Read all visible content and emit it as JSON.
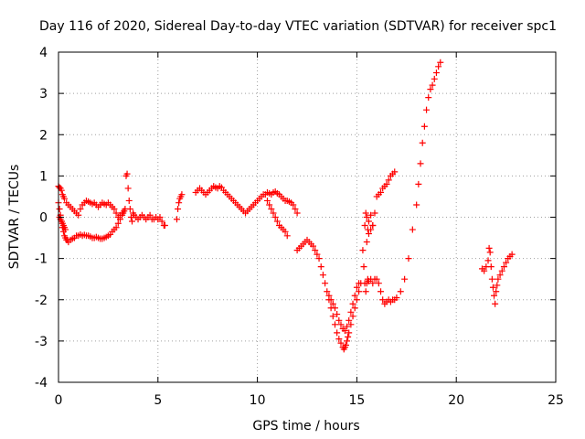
{
  "chart_data": {
    "type": "scatter",
    "title": "Day 116 of 2020, Sidereal Day-to-day VTEC variation (SDTVAR) for receiver spc1",
    "xlabel": "GPS time / hours",
    "ylabel": "SDTVAR / TECUs",
    "xlim": [
      0,
      25
    ],
    "ylim": [
      -4,
      4
    ],
    "xticks": [
      0,
      5,
      10,
      15,
      20,
      25
    ],
    "yticks": [
      -4,
      -3,
      -2,
      -1,
      0,
      1,
      2,
      3,
      4
    ],
    "xtick_labels": [
      "0",
      "5",
      "10",
      "15",
      "20",
      "25"
    ],
    "ytick_labels": [
      "-4",
      "-3",
      "-2",
      "-1",
      "0",
      "1",
      "2",
      "3",
      "4"
    ],
    "grid": true,
    "marker": "+",
    "color": "#ff0000",
    "series": [
      {
        "x": [
          0.0,
          0.05,
          0.1,
          0.15,
          0.2,
          0.25,
          0.3,
          0.35,
          0.4,
          0.45,
          0.5,
          0.6,
          0.7,
          0.8,
          0.9,
          1.0,
          1.1,
          1.2,
          1.3,
          1.4,
          1.5,
          1.6,
          1.7,
          1.8,
          1.9,
          2.0,
          2.1,
          2.2,
          2.3,
          2.4,
          2.5,
          2.6,
          2.7,
          2.8,
          2.9,
          3.0,
          3.1,
          3.2,
          3.25,
          3.3,
          3.35
        ],
        "y": [
          0.35,
          0.2,
          0.05,
          -0.1,
          -0.25,
          -0.35,
          -0.45,
          -0.5,
          -0.55,
          -0.55,
          -0.6,
          -0.55,
          -0.52,
          -0.5,
          -0.45,
          -0.45,
          -0.42,
          -0.45,
          -0.43,
          -0.45,
          -0.45,
          -0.47,
          -0.5,
          -0.5,
          -0.48,
          -0.5,
          -0.52,
          -0.52,
          -0.5,
          -0.48,
          -0.45,
          -0.42,
          -0.35,
          -0.3,
          -0.25,
          -0.15,
          -0.05,
          0.05,
          0.1,
          0.15,
          0.2
        ]
      },
      {
        "x": [
          0.0,
          0.05,
          0.1,
          0.15,
          0.2,
          0.25,
          0.3,
          0.4,
          0.5,
          0.6,
          0.7,
          0.8,
          0.9,
          1.0,
          1.1,
          1.2,
          1.3,
          1.4,
          1.5,
          1.6,
          1.7,
          1.8,
          1.9,
          2.0,
          2.1,
          2.2,
          2.3,
          2.4,
          2.5,
          2.6,
          2.7,
          2.8,
          2.9,
          3.0,
          3.1,
          3.2
        ],
        "y": [
          0.75,
          0.72,
          0.7,
          0.65,
          0.55,
          0.5,
          0.45,
          0.35,
          0.3,
          0.25,
          0.2,
          0.15,
          0.1,
          0.05,
          0.2,
          0.3,
          0.35,
          0.4,
          0.38,
          0.35,
          0.32,
          0.35,
          0.3,
          0.25,
          0.3,
          0.35,
          0.32,
          0.3,
          0.35,
          0.3,
          0.25,
          0.2,
          0.1,
          0.0,
          0.05,
          0.1
        ]
      },
      {
        "x": [
          0.05,
          0.1,
          0.15,
          0.2,
          0.25,
          0.3,
          0.35
        ],
        "y": [
          0.0,
          -0.05,
          -0.1,
          -0.15,
          -0.2,
          -0.25,
          -0.3
        ]
      },
      {
        "x": [
          3.4,
          3.45,
          3.5,
          3.55,
          3.6,
          3.65,
          3.7,
          3.75,
          3.8,
          3.9,
          4.0,
          4.1,
          4.2,
          4.3,
          4.4,
          4.5,
          4.6,
          4.7,
          4.8,
          4.9,
          5.0,
          5.1,
          5.2,
          5.3,
          5.35
        ],
        "y": [
          1.0,
          1.05,
          0.7,
          0.4,
          0.2,
          0.0,
          -0.1,
          0.1,
          0.05,
          0.0,
          -0.05,
          0.0,
          0.05,
          0.0,
          -0.05,
          0.0,
          0.05,
          -0.05,
          -0.05,
          0.0,
          -0.05,
          0.0,
          -0.1,
          -0.2,
          -0.2
        ]
      },
      {
        "x": [
          5.95,
          6.0,
          6.05,
          6.1,
          6.15,
          6.2
        ],
        "y": [
          -0.05,
          0.2,
          0.35,
          0.45,
          0.5,
          0.55
        ]
      },
      {
        "x": [
          6.9,
          7.0,
          7.1,
          7.2,
          7.3,
          7.4,
          7.5,
          7.6,
          7.7,
          7.8,
          7.9,
          8.0,
          8.1,
          8.2,
          8.3,
          8.4,
          8.5,
          8.6,
          8.7,
          8.8,
          8.9,
          9.0,
          9.1,
          9.2,
          9.3,
          9.4,
          9.5,
          9.6,
          9.7,
          9.8,
          9.9,
          10.0,
          10.1,
          10.2,
          10.3,
          10.4,
          10.5,
          10.6,
          10.7,
          10.8,
          10.9,
          11.0,
          11.1,
          11.2,
          11.3,
          11.4,
          11.5,
          11.6,
          11.7,
          11.8,
          11.9,
          12.0
        ],
        "y": [
          0.6,
          0.65,
          0.7,
          0.65,
          0.6,
          0.55,
          0.6,
          0.65,
          0.7,
          0.75,
          0.72,
          0.7,
          0.75,
          0.72,
          0.65,
          0.6,
          0.55,
          0.5,
          0.45,
          0.4,
          0.35,
          0.3,
          0.25,
          0.2,
          0.15,
          0.1,
          0.15,
          0.2,
          0.25,
          0.3,
          0.35,
          0.4,
          0.45,
          0.5,
          0.55,
          0.55,
          0.6,
          0.58,
          0.55,
          0.6,
          0.62,
          0.58,
          0.55,
          0.5,
          0.45,
          0.4,
          0.4,
          0.38,
          0.35,
          0.3,
          0.2,
          0.1
        ]
      },
      {
        "x": [
          10.5,
          10.6,
          10.7,
          10.8,
          10.9,
          11.0,
          11.1,
          11.2,
          11.3,
          11.4,
          11.5
        ],
        "y": [
          0.4,
          0.3,
          0.2,
          0.1,
          0.0,
          -0.1,
          -0.2,
          -0.25,
          -0.3,
          -0.35,
          -0.45
        ]
      },
      {
        "x": [
          12.0,
          12.1,
          12.2,
          12.3,
          12.4,
          12.5,
          12.6,
          12.7,
          12.8,
          12.9,
          13.0,
          13.1,
          13.2,
          13.3,
          13.4,
          13.5,
          13.6,
          13.7,
          13.8,
          13.9,
          14.0,
          14.1,
          14.2,
          14.3,
          14.35,
          14.4,
          14.45,
          14.5,
          14.55,
          14.6,
          14.7,
          14.8,
          14.9,
          15.0,
          15.1,
          15.2
        ],
        "y": [
          -0.8,
          -0.75,
          -0.7,
          -0.65,
          -0.6,
          -0.55,
          -0.6,
          -0.65,
          -0.7,
          -0.8,
          -0.9,
          -1.0,
          -1.2,
          -1.4,
          -1.6,
          -1.8,
          -2.0,
          -2.2,
          -2.4,
          -2.6,
          -2.8,
          -2.95,
          -3.05,
          -3.15,
          -3.2,
          -3.15,
          -3.1,
          -3.0,
          -2.9,
          -2.8,
          -2.6,
          -2.4,
          -2.2,
          -2.0,
          -1.8,
          -1.6
        ]
      },
      {
        "x": [
          13.6,
          13.7,
          13.8,
          13.9,
          14.0,
          14.1,
          14.2,
          14.3,
          14.4,
          14.5,
          14.6,
          14.7,
          14.8,
          14.9,
          15.0,
          15.1
        ],
        "y": [
          -1.9,
          -2.0,
          -2.1,
          -2.2,
          -2.35,
          -2.5,
          -2.6,
          -2.7,
          -2.75,
          -2.65,
          -2.5,
          -2.3,
          -2.1,
          -1.9,
          -1.7,
          -1.6
        ]
      },
      {
        "x": [
          15.3,
          15.35,
          15.4,
          15.45,
          15.5,
          15.55,
          15.6,
          15.7,
          15.8,
          15.9,
          16.0,
          16.1,
          16.2,
          16.3,
          16.4,
          16.5,
          16.6,
          16.7,
          16.8,
          16.9,
          17.0,
          17.2,
          17.4,
          17.6,
          17.8,
          18.0,
          18.1,
          18.2,
          18.3,
          18.4,
          18.5,
          18.6,
          18.7,
          18.8,
          18.9,
          19.0,
          19.1,
          19.2
        ],
        "y": [
          -0.8,
          -1.2,
          -1.6,
          -1.8,
          -1.6,
          -1.5,
          -1.55,
          -1.5,
          -1.6,
          -1.5,
          -1.5,
          -1.6,
          -1.8,
          -2.0,
          -2.1,
          -2.05,
          -2.0,
          -2.05,
          -2.0,
          -2.0,
          -1.95,
          -1.8,
          -1.5,
          -1.0,
          -0.3,
          0.3,
          0.8,
          1.3,
          1.8,
          2.2,
          2.6,
          2.9,
          3.1,
          3.2,
          3.35,
          3.5,
          3.65,
          3.75
        ]
      },
      {
        "x": [
          15.4,
          15.45,
          15.5,
          15.55,
          15.6,
          15.7,
          15.8,
          15.9,
          16.0,
          16.1,
          16.2,
          16.3,
          16.4,
          16.5,
          16.6,
          16.7,
          16.8,
          16.9
        ],
        "y": [
          -0.2,
          0.1,
          0.0,
          -0.3,
          -0.1,
          0.05,
          -0.2,
          0.1,
          0.5,
          0.55,
          0.6,
          0.7,
          0.75,
          0.8,
          0.9,
          1.0,
          1.05,
          1.1
        ]
      },
      {
        "x": [
          15.5,
          15.6,
          15.7,
          15.8
        ],
        "y": [
          -0.6,
          -0.4,
          -0.3,
          -0.2
        ]
      },
      {
        "x": [
          21.3,
          21.4,
          21.5,
          21.6,
          21.65,
          21.7,
          21.75,
          21.8,
          21.85,
          21.9,
          21.95,
          22.0,
          22.05,
          22.1,
          22.2,
          22.3,
          22.4,
          22.5,
          22.6,
          22.7,
          22.8
        ],
        "y": [
          -1.25,
          -1.3,
          -1.2,
          -1.05,
          -0.75,
          -0.85,
          -1.2,
          -1.5,
          -1.7,
          -1.9,
          -2.1,
          -1.8,
          -1.65,
          -1.5,
          -1.4,
          -1.3,
          -1.2,
          -1.1,
          -1.0,
          -0.95,
          -0.9
        ]
      }
    ]
  }
}
